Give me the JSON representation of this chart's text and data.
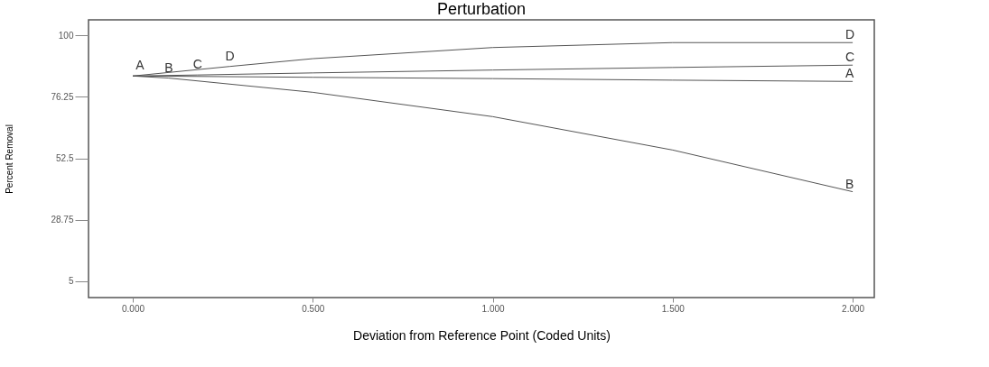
{
  "chart_data": {
    "type": "line",
    "title": "Perturbation",
    "xlabel": "Deviation from Reference Point (Coded Units)",
    "ylabel": "Percent Removal",
    "xlim": [
      -0.123,
      2.06
    ],
    "ylim": [
      -1.3,
      106
    ],
    "xticks": [
      {
        "value": 0,
        "label": "0.000"
      },
      {
        "value": 0.5,
        "label": "0.500"
      },
      {
        "value": 1,
        "label": "1.000"
      },
      {
        "value": 1.5,
        "label": "1.500"
      },
      {
        "value": 2,
        "label": "2.000"
      }
    ],
    "yticks": [
      5,
      28.75,
      52.5,
      76.25,
      100
    ],
    "grid": false,
    "legend": false,
    "marker": "none",
    "line_style": "solid",
    "series": [
      {
        "name": "A",
        "color": "#555555",
        "x": [
          0,
          0.02,
          0.5,
          1,
          1.5,
          2
        ],
        "values": [
          84.3,
          84.3,
          83.8,
          83.3,
          82.7,
          82.2
        ]
      },
      {
        "name": "B",
        "color": "#555555",
        "x": [
          0,
          0.1,
          0.5,
          1,
          1.5,
          2
        ],
        "values": [
          84.3,
          83.5,
          78,
          68.6,
          55.7,
          39.6
        ]
      },
      {
        "name": "C",
        "color": "#555555",
        "x": [
          0,
          0.18,
          0.5,
          1,
          1.5,
          2
        ],
        "values": [
          84.3,
          84.7,
          85.5,
          86.6,
          87.6,
          88.5
        ]
      },
      {
        "name": "D",
        "color": "#555555",
        "x": [
          0,
          0.27,
          0.5,
          1,
          1.5,
          2
        ],
        "values": [
          84.3,
          88,
          91,
          95.3,
          97.2,
          97.2
        ]
      }
    ]
  }
}
